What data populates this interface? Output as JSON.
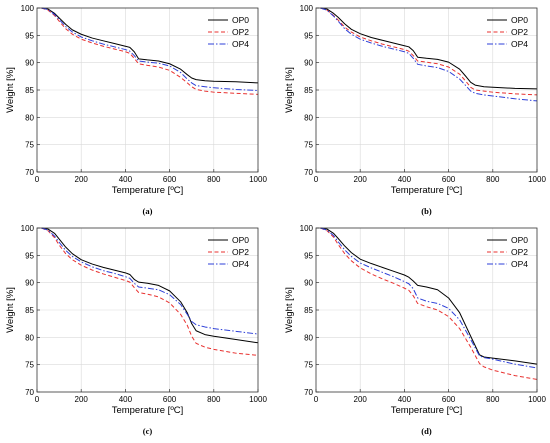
{
  "chart_data": [
    {
      "type": "line",
      "panel_label": "(a)",
      "xlabel": "Temperature [ºC]",
      "ylabel": "Weight [%]",
      "xlim": [
        0,
        1000
      ],
      "ylim": [
        70,
        100
      ],
      "xticks": [
        0,
        200,
        400,
        600,
        800,
        1000
      ],
      "yticks": [
        70,
        75,
        80,
        85,
        90,
        95,
        100
      ],
      "grid": true,
      "legend": "top-right",
      "series": [
        {
          "name": "OP0",
          "color": "#000000",
          "dash": "solid",
          "x": [
            20,
            50,
            80,
            100,
            130,
            160,
            200,
            250,
            300,
            350,
            400,
            420,
            440,
            460,
            500,
            550,
            600,
            650,
            680,
            700,
            720,
            760,
            800,
            900,
            1000
          ],
          "y": [
            100,
            99.8,
            99,
            98.2,
            97,
            96,
            95.2,
            94.5,
            94,
            93.5,
            93,
            92.8,
            92,
            90.7,
            90.5,
            90.3,
            89.8,
            88.8,
            87.8,
            87.2,
            86.9,
            86.7,
            86.6,
            86.5,
            86.3
          ]
        },
        {
          "name": "OP2",
          "color": "#e8312f",
          "dash": "dash",
          "x": [
            20,
            50,
            80,
            100,
            130,
            160,
            200,
            250,
            300,
            350,
            400,
            420,
            440,
            460,
            500,
            550,
            600,
            650,
            680,
            700,
            720,
            760,
            800,
            900,
            1000
          ],
          "y": [
            100,
            99.6,
            98.6,
            97.6,
            96.2,
            95.2,
            94.3,
            93.6,
            93,
            92.5,
            92,
            91.7,
            90.8,
            89.8,
            89.5,
            89.2,
            88.6,
            87.3,
            86.3,
            85.6,
            85.1,
            84.8,
            84.6,
            84.4,
            84.2
          ]
        },
        {
          "name": "OP4",
          "color": "#2d3fd8",
          "dash": "dashdot",
          "x": [
            20,
            50,
            80,
            100,
            130,
            160,
            200,
            250,
            300,
            350,
            400,
            420,
            440,
            460,
            500,
            550,
            600,
            650,
            680,
            700,
            720,
            760,
            800,
            900,
            1000
          ],
          "y": [
            100,
            99.7,
            98.8,
            97.9,
            96.6,
            95.6,
            94.7,
            94,
            93.4,
            92.9,
            92.4,
            92.1,
            91.3,
            90.3,
            90.1,
            89.9,
            89.4,
            88.2,
            87,
            86.3,
            85.8,
            85.6,
            85.4,
            85.1,
            84.9
          ]
        }
      ]
    },
    {
      "type": "line",
      "panel_label": "(b)",
      "xlabel": "Temperature [ºC]",
      "ylabel": "Weight [%]",
      "xlim": [
        0,
        1000
      ],
      "ylim": [
        70,
        100
      ],
      "xticks": [
        0,
        200,
        400,
        600,
        800,
        1000
      ],
      "yticks": [
        70,
        75,
        80,
        85,
        90,
        95,
        100
      ],
      "grid": true,
      "legend": "top-right",
      "series": [
        {
          "name": "OP0",
          "color": "#000000",
          "dash": "solid",
          "x": [
            20,
            50,
            80,
            100,
            130,
            160,
            200,
            250,
            300,
            350,
            400,
            420,
            440,
            460,
            500,
            550,
            600,
            650,
            680,
            700,
            720,
            760,
            800,
            900,
            1000
          ],
          "y": [
            100,
            99.8,
            99,
            98.3,
            97.1,
            96.1,
            95.3,
            94.6,
            94.1,
            93.6,
            93.1,
            92.9,
            92.2,
            91,
            90.8,
            90.6,
            90.1,
            88.8,
            87.4,
            86.4,
            85.9,
            85.6,
            85.5,
            85.3,
            85.2
          ]
        },
        {
          "name": "OP2",
          "color": "#e8312f",
          "dash": "dash",
          "x": [
            20,
            50,
            80,
            100,
            130,
            160,
            200,
            250,
            300,
            350,
            400,
            420,
            440,
            460,
            500,
            550,
            600,
            650,
            680,
            700,
            720,
            760,
            800,
            900,
            1000
          ],
          "y": [
            100,
            99.6,
            98.6,
            97.8,
            96.5,
            95.6,
            94.7,
            94,
            93.4,
            92.9,
            92.4,
            92.1,
            91.3,
            90.3,
            90.1,
            89.8,
            89.2,
            87.9,
            86.5,
            85.5,
            85,
            84.8,
            84.6,
            84.3,
            84.1
          ]
        },
        {
          "name": "OP4",
          "color": "#2d3fd8",
          "dash": "dashdot",
          "x": [
            20,
            50,
            80,
            100,
            130,
            160,
            200,
            250,
            300,
            350,
            400,
            420,
            440,
            460,
            500,
            550,
            600,
            650,
            680,
            700,
            720,
            760,
            800,
            900,
            1000
          ],
          "y": [
            100,
            99.6,
            98.5,
            97.6,
            96.2,
            95.2,
            94.3,
            93.6,
            93,
            92.5,
            92,
            91.7,
            90.8,
            89.7,
            89.4,
            89.1,
            88.4,
            87,
            85.7,
            84.8,
            84.4,
            84.1,
            83.9,
            83.4,
            83
          ]
        }
      ]
    },
    {
      "type": "line",
      "panel_label": "(c)",
      "xlabel": "Temperature [ºC]",
      "ylabel": "Weight [%]",
      "xlim": [
        0,
        1000
      ],
      "ylim": [
        70,
        100
      ],
      "xticks": [
        0,
        200,
        400,
        600,
        800,
        1000
      ],
      "yticks": [
        70,
        75,
        80,
        85,
        90,
        95,
        100
      ],
      "grid": true,
      "legend": "top-right",
      "series": [
        {
          "name": "OP0",
          "color": "#000000",
          "dash": "solid",
          "x": [
            20,
            50,
            80,
            100,
            130,
            160,
            200,
            250,
            300,
            350,
            400,
            420,
            440,
            460,
            500,
            550,
            600,
            650,
            680,
            700,
            720,
            760,
            800,
            900,
            1000
          ],
          "y": [
            100,
            99.8,
            99,
            98,
            96.5,
            95.3,
            94.2,
            93.4,
            92.8,
            92.3,
            91.8,
            91.5,
            90.6,
            90.1,
            89.9,
            89.5,
            88.5,
            86.5,
            84.5,
            82.5,
            81.2,
            80.5,
            80.2,
            79.6,
            79
          ]
        },
        {
          "name": "OP2",
          "color": "#e8312f",
          "dash": "dash",
          "x": [
            20,
            50,
            80,
            100,
            130,
            160,
            200,
            250,
            300,
            350,
            400,
            420,
            440,
            460,
            500,
            550,
            600,
            650,
            680,
            700,
            720,
            760,
            800,
            900,
            1000
          ],
          "y": [
            100,
            99.5,
            98.2,
            96.9,
            95.3,
            94.2,
            93.2,
            92.3,
            91.6,
            91,
            90.4,
            90.1,
            89.1,
            88.2,
            87.9,
            87.4,
            86.3,
            84.2,
            82.2,
            80.2,
            78.9,
            78.2,
            77.8,
            77.1,
            76.7
          ]
        },
        {
          "name": "OP4",
          "color": "#2d3fd8",
          "dash": "dashdot",
          "x": [
            20,
            50,
            80,
            100,
            130,
            160,
            200,
            250,
            300,
            350,
            400,
            420,
            440,
            460,
            500,
            550,
            600,
            650,
            680,
            700,
            720,
            760,
            800,
            900,
            1000
          ],
          "y": [
            100,
            99.6,
            98.5,
            97.4,
            95.9,
            94.8,
            93.8,
            92.9,
            92.2,
            91.7,
            91.1,
            90.8,
            89.9,
            89.2,
            89,
            88.7,
            87.8,
            86,
            84.2,
            82.9,
            82.3,
            81.9,
            81.6,
            81.1,
            80.6
          ]
        }
      ]
    },
    {
      "type": "line",
      "panel_label": "(d)",
      "xlabel": "Temperature [ºC]",
      "ylabel": "Weight [%]",
      "xlim": [
        0,
        1000
      ],
      "ylim": [
        70,
        100
      ],
      "xticks": [
        0,
        200,
        400,
        600,
        800,
        1000
      ],
      "yticks": [
        70,
        75,
        80,
        85,
        90,
        95,
        100
      ],
      "grid": true,
      "legend": "top-right",
      "series": [
        {
          "name": "OP0",
          "color": "#000000",
          "dash": "solid",
          "x": [
            20,
            50,
            80,
            100,
            130,
            160,
            200,
            250,
            300,
            350,
            400,
            420,
            440,
            460,
            500,
            550,
            600,
            650,
            700,
            740,
            760,
            800,
            900,
            1000
          ],
          "y": [
            100,
            99.8,
            99,
            98.1,
            96.7,
            95.5,
            94.3,
            93.5,
            92.8,
            92.1,
            91.4,
            91,
            90.3,
            89.5,
            89.2,
            88.7,
            87.2,
            84.5,
            80.2,
            76.8,
            76.4,
            76.2,
            75.7,
            75.1
          ]
        },
        {
          "name": "OP2",
          "color": "#e8312f",
          "dash": "dash",
          "x": [
            20,
            50,
            80,
            100,
            130,
            160,
            200,
            250,
            300,
            350,
            400,
            420,
            440,
            460,
            500,
            550,
            600,
            650,
            700,
            740,
            760,
            800,
            900,
            1000
          ],
          "y": [
            100,
            99.5,
            98.3,
            97,
            95.3,
            94,
            92.7,
            91.6,
            90.7,
            89.9,
            89,
            88.6,
            87.6,
            86.2,
            85.6,
            85,
            83.8,
            81.6,
            78.2,
            75.2,
            74.6,
            74,
            73,
            72.3
          ]
        },
        {
          "name": "OP4",
          "color": "#2d3fd8",
          "dash": "dashdot",
          "x": [
            20,
            50,
            80,
            100,
            130,
            160,
            200,
            250,
            300,
            350,
            400,
            420,
            440,
            460,
            500,
            550,
            600,
            650,
            700,
            740,
            760,
            800,
            900,
            1000
          ],
          "y": [
            100,
            99.6,
            98.6,
            97.5,
            96,
            94.8,
            93.6,
            92.7,
            91.9,
            91.1,
            90.2,
            89.8,
            88.9,
            87.2,
            86.6,
            86.2,
            85.3,
            83.2,
            79.6,
            76.6,
            76.3,
            76,
            75.1,
            74.4
          ]
        }
      ]
    }
  ]
}
